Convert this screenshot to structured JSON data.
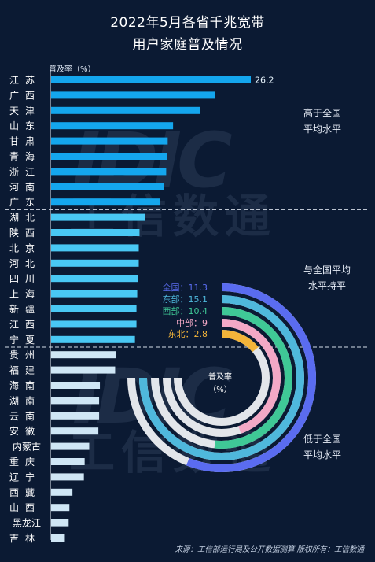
{
  "title_line1": "2022年5月各省千兆宽带",
  "title_line2": "用户家庭普及情况",
  "ylabel": "普及率（%）",
  "group_labels": {
    "high": [
      "高于全国",
      "平均水平"
    ],
    "mid": [
      "与全国平均",
      "水平持平"
    ],
    "low": [
      "低于全国",
      "平均水平"
    ]
  },
  "watermark": {
    "logo": "IDIC",
    "text": "工信数通"
  },
  "source": "来源：工信部运行局及公开数据测算  版权所有：工信数通",
  "colors": {
    "high_bar": "#14a6ee",
    "mid_bar": "#49c8f4",
    "low_bar": "#cfe6f5",
    "background": "#0b1a33"
  },
  "chart_data": [
    {
      "type": "bar",
      "orientation": "horizontal",
      "categories": [
        "江苏",
        "广西",
        "天津",
        "山东",
        "甘肃",
        "青海",
        "浙江",
        "河南",
        "广东",
        "湖北",
        "陕西",
        "北京",
        "河北",
        "四川",
        "上海",
        "新疆",
        "江西",
        "宁夏",
        "贵州",
        "福建",
        "海南",
        "湖南",
        "云南",
        "安徽",
        "内蒙古",
        "重庆",
        "辽宁",
        "西藏",
        "山西",
        "黑龙江",
        "吉林"
      ],
      "values": [
        26.2,
        21.5,
        19.5,
        16.0,
        15.3,
        15.2,
        15.1,
        14.8,
        14.3,
        12.3,
        11.6,
        11.5,
        11.5,
        11.4,
        11.3,
        11.2,
        11.2,
        11.0,
        8.5,
        8.4,
        6.4,
        6.3,
        6.3,
        6.2,
        5.0,
        4.4,
        4.3,
        2.8,
        2.4,
        2.3,
        1.8
      ],
      "data_labels": [
        {
          "category": "江苏",
          "text": "26.2"
        }
      ],
      "groups": [
        {
          "key": "high",
          "count": 9
        },
        {
          "key": "mid",
          "count": 9
        },
        {
          "key": "low",
          "count": 13
        }
      ],
      "xlim": [
        0,
        30
      ],
      "ylabel": "普及率（%）"
    },
    {
      "type": "radial-bar",
      "center_label": [
        "普及率",
        "（%）"
      ],
      "series": [
        {
          "name": "全国",
          "value": 11.3,
          "label": "全国：11.3",
          "color": "#5a6cf0"
        },
        {
          "name": "东部",
          "value": 15.1,
          "label": "东部：15.1",
          "color": "#4fb8dc"
        },
        {
          "name": "西部",
          "value": 10.4,
          "label": "西部：10.4",
          "color": "#3fc896"
        },
        {
          "name": "中部",
          "value": 9,
          "label": "中部：9",
          "color": "#f3a8c6"
        },
        {
          "name": "东北",
          "value": 2.8,
          "label": "东北：2.8",
          "color": "#f2b43a"
        }
      ],
      "max": 15.1
    }
  ]
}
